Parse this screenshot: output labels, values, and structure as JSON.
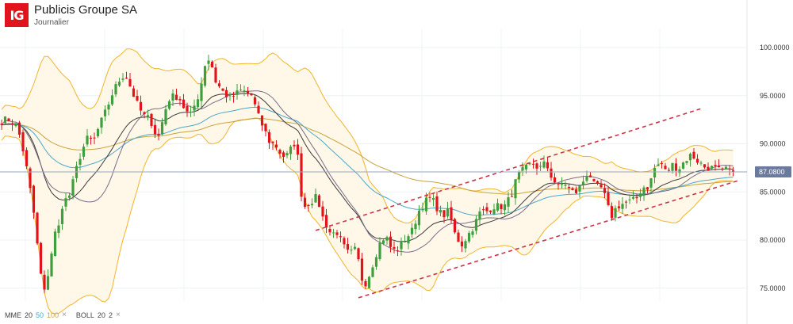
{
  "header": {
    "logo_text": "IG",
    "title": "Publicis Groupe SA",
    "subtitle": "Journalier"
  },
  "legend": {
    "mme_label": "MME",
    "mme_periods": [
      "20",
      "50",
      "100"
    ],
    "boll_label": "BOLL",
    "boll_params": [
      "20",
      "2"
    ],
    "remove_symbol": "×"
  },
  "colors": {
    "up": "#3e9f3e",
    "down": "#e1141d",
    "ema20": "#3a3a3a",
    "ema50": "#4aa7c8",
    "ema100": "#c9a23a",
    "boll": "#f0b429",
    "boll_fill": "#fff8e8",
    "channel": "#cc3344",
    "price_tag": "#6a7a9c",
    "grid": "#eef0f3"
  },
  "chart_data": {
    "type": "candlestick",
    "title": "Publicis Groupe SA",
    "y_ticks": [
      "100.0000",
      "95.0000",
      "90.0000",
      "85.0000",
      "80.0000",
      "75.0000"
    ],
    "ylim": [
      73.2,
      102.2
    ],
    "last_price": 87.08,
    "last_price_label": "87.0800",
    "grid": true,
    "indicators": [
      "EMA 20",
      "EMA 50",
      "EMA 100",
      "BOLL 20 2"
    ],
    "anchors": [
      [
        0,
        92.3
      ],
      [
        10,
        92.6
      ],
      [
        22,
        91.8
      ],
      [
        30,
        89.0
      ],
      [
        35,
        86.8
      ],
      [
        44,
        82.0
      ],
      [
        50,
        77.0
      ],
      [
        56,
        74.6
      ],
      [
        63,
        77.5
      ],
      [
        68,
        80.5
      ],
      [
        75,
        81.5
      ],
      [
        80,
        84.5
      ],
      [
        85,
        84.0
      ],
      [
        90,
        85.3
      ],
      [
        95,
        87.0
      ],
      [
        100,
        88.5
      ],
      [
        106,
        89.8
      ],
      [
        110,
        90.5
      ],
      [
        118,
        90.3
      ],
      [
        126,
        92.0
      ],
      [
        134,
        93.5
      ],
      [
        143,
        95.5
      ],
      [
        152,
        96.8
      ],
      [
        158,
        97.3
      ],
      [
        164,
        96.0
      ],
      [
        172,
        94.3
      ],
      [
        180,
        93.0
      ],
      [
        190,
        92.5
      ],
      [
        194,
        91.3
      ],
      [
        200,
        90.8
      ],
      [
        205,
        92.4
      ],
      [
        212,
        94.6
      ],
      [
        220,
        95.0
      ],
      [
        226,
        94.8
      ],
      [
        234,
        93.4
      ],
      [
        240,
        92.9
      ],
      [
        250,
        95.0
      ],
      [
        256,
        97.0
      ],
      [
        260,
        99.0
      ],
      [
        266,
        98.5
      ],
      [
        272,
        96.5
      ],
      [
        280,
        95.5
      ],
      [
        290,
        94.7
      ],
      [
        298,
        95.2
      ],
      [
        305,
        95.6
      ],
      [
        312,
        95.2
      ],
      [
        318,
        95.0
      ],
      [
        324,
        93.2
      ],
      [
        332,
        91.7
      ],
      [
        340,
        90.2
      ],
      [
        348,
        89.8
      ],
      [
        356,
        88.7
      ],
      [
        362,
        88.8
      ],
      [
        368,
        89.6
      ],
      [
        374,
        90.5
      ],
      [
        378,
        85.5
      ],
      [
        384,
        83.5
      ],
      [
        392,
        84.0
      ],
      [
        400,
        84.5
      ],
      [
        406,
        82.5
      ],
      [
        412,
        81.5
      ],
      [
        418,
        80.5
      ],
      [
        424,
        81.0
      ],
      [
        432,
        79.5
      ],
      [
        440,
        78.5
      ],
      [
        448,
        79.0
      ],
      [
        452,
        77.8
      ],
      [
        456,
        76.0
      ],
      [
        462,
        75.5
      ],
      [
        470,
        77.5
      ],
      [
        478,
        79.5
      ],
      [
        486,
        80.5
      ],
      [
        494,
        79.0
      ],
      [
        500,
        78.9
      ],
      [
        510,
        80.0
      ],
      [
        520,
        81.0
      ],
      [
        528,
        83.0
      ],
      [
        536,
        84.0
      ],
      [
        544,
        84.4
      ],
      [
        550,
        83.5
      ],
      [
        558,
        82.5
      ],
      [
        566,
        83.0
      ],
      [
        574,
        80.5
      ],
      [
        582,
        79.5
      ],
      [
        590,
        80.5
      ],
      [
        598,
        81.5
      ],
      [
        606,
        83.0
      ],
      [
        614,
        83.0
      ],
      [
        622,
        83.5
      ],
      [
        630,
        83.5
      ],
      [
        636,
        83.5
      ],
      [
        644,
        84.5
      ],
      [
        650,
        86.0
      ],
      [
        656,
        87.0
      ],
      [
        664,
        87.5
      ],
      [
        672,
        88.0
      ],
      [
        680,
        87.4
      ],
      [
        688,
        88.0
      ],
      [
        696,
        86.5
      ],
      [
        704,
        85.5
      ],
      [
        712,
        86.0
      ],
      [
        720,
        85.0
      ],
      [
        728,
        85.0
      ],
      [
        736,
        86.2
      ],
      [
        742,
        87.2
      ],
      [
        750,
        85.5
      ],
      [
        758,
        85.4
      ],
      [
        764,
        84.3
      ],
      [
        770,
        82.3
      ],
      [
        778,
        83.5
      ],
      [
        786,
        83.8
      ],
      [
        794,
        84.0
      ],
      [
        802,
        84.2
      ],
      [
        810,
        85.5
      ],
      [
        818,
        85.5
      ],
      [
        826,
        87.6
      ],
      [
        834,
        88.0
      ],
      [
        840,
        87.0
      ],
      [
        848,
        87.8
      ],
      [
        856,
        87.4
      ],
      [
        864,
        88.3
      ],
      [
        872,
        88.9
      ],
      [
        880,
        88.2
      ],
      [
        888,
        87.6
      ],
      [
        896,
        87.5
      ],
      [
        904,
        87.4
      ],
      [
        910,
        87.0
      ],
      [
        916,
        87.5
      ],
      [
        922,
        86.8
      ],
      [
        926,
        87.08
      ]
    ],
    "channel_lines": [
      {
        "from": [
          398,
          81.0
        ],
        "to": [
          886,
          93.7
        ]
      },
      {
        "from": [
          452,
          74.0
        ],
        "to": [
          932,
          86.2
        ]
      }
    ],
    "channel_dashed": true
  }
}
